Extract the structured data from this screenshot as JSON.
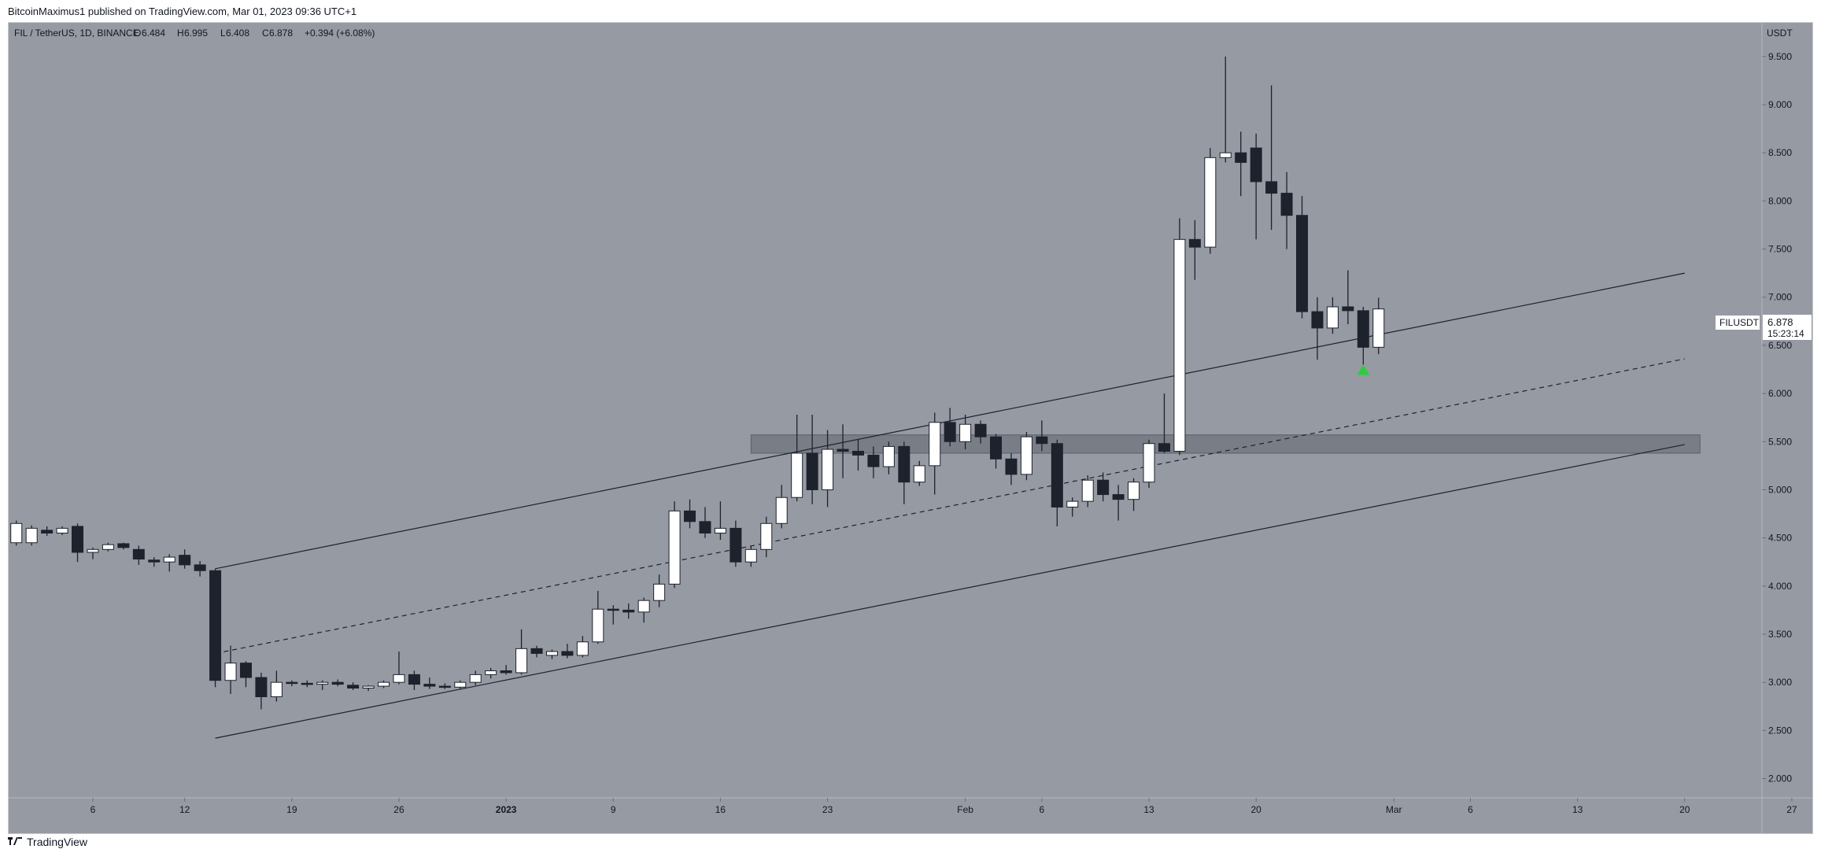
{
  "header": {
    "publish_line": "BitcoinMaximus1 published on TradingView.com, Mar 01, 2023 09:36 UTC+1"
  },
  "legend": {
    "symbol": "FIL / TetherUS, 1D, BINANCE",
    "open_label": "O",
    "open_value": "6.484",
    "high_label": "H",
    "high_value": "6.995",
    "low_label": "L",
    "low_value": "6.408",
    "close_label": "C",
    "close_value": "6.878",
    "change": "+0.394 (+6.08%)"
  },
  "price_scale": {
    "currency": "USDT",
    "ticks": [
      "9.500",
      "9.000",
      "8.500",
      "8.000",
      "7.500",
      "7.000",
      "6.500",
      "6.000",
      "5.500",
      "5.000",
      "4.500",
      "4.000",
      "3.500",
      "3.000",
      "2.500",
      "2.000"
    ]
  },
  "price_tag": {
    "symbol": "FILUSDT",
    "price": "6.878",
    "countdown": "15:23:14"
  },
  "time_axis": {
    "labels": [
      "6",
      "12",
      "19",
      "26",
      "2023",
      "9",
      "16",
      "23",
      "Feb",
      "6",
      "13",
      "20",
      "Mar",
      "6",
      "13",
      "20",
      "27"
    ]
  },
  "footer": {
    "brand": "TradingView"
  },
  "colors": {
    "chart_bg": "#969aa3",
    "bull_body": "#ffffff",
    "bear_body": "#1e222d",
    "wick": "#1e222d",
    "channel_line": "#1e222d",
    "zone": "#6f737c",
    "signal_arrow": "#2ecc40"
  },
  "chart_data": {
    "type": "candlestick",
    "title": "FIL / TetherUS, 1D, BINANCE",
    "ylabel": "USDT",
    "ylim": [
      1.8,
      9.85
    ],
    "y_ticks": [
      2.0,
      2.5,
      3.0,
      3.5,
      4.0,
      4.5,
      5.0,
      5.5,
      6.0,
      6.5,
      7.0,
      7.5,
      8.0,
      8.5,
      9.0,
      9.5
    ],
    "x_range": [
      "2022-12-01",
      "2023-03-31"
    ],
    "x_ticks": [
      {
        "date": "2022-12-06",
        "label": "6"
      },
      {
        "date": "2022-12-12",
        "label": "12"
      },
      {
        "date": "2022-12-19",
        "label": "19"
      },
      {
        "date": "2022-12-26",
        "label": "26"
      },
      {
        "date": "2023-01-02",
        "label": "2023"
      },
      {
        "date": "2023-01-09",
        "label": "9"
      },
      {
        "date": "2023-01-16",
        "label": "16"
      },
      {
        "date": "2023-01-23",
        "label": "23"
      },
      {
        "date": "2023-02-01",
        "label": "Feb"
      },
      {
        "date": "2023-02-06",
        "label": "6"
      },
      {
        "date": "2023-02-13",
        "label": "13"
      },
      {
        "date": "2023-02-20",
        "label": "20"
      },
      {
        "date": "2023-03-01",
        "label": "Mar"
      },
      {
        "date": "2023-03-06",
        "label": "6"
      },
      {
        "date": "2023-03-13",
        "label": "13"
      },
      {
        "date": "2023-03-20",
        "label": "20"
      },
      {
        "date": "2023-03-27",
        "label": "27"
      }
    ],
    "candles": [
      {
        "date": "2022-12-01",
        "o": 4.45,
        "h": 4.68,
        "l": 4.42,
        "c": 4.65
      },
      {
        "date": "2022-12-02",
        "o": 4.45,
        "h": 4.63,
        "l": 4.42,
        "c": 4.6
      },
      {
        "date": "2022-12-03",
        "o": 4.58,
        "h": 4.62,
        "l": 4.52,
        "c": 4.55
      },
      {
        "date": "2022-12-04",
        "o": 4.55,
        "h": 4.62,
        "l": 4.53,
        "c": 4.6
      },
      {
        "date": "2022-12-05",
        "o": 4.62,
        "h": 4.65,
        "l": 4.25,
        "c": 4.35
      },
      {
        "date": "2022-12-06",
        "o": 4.35,
        "h": 4.4,
        "l": 4.28,
        "c": 4.38
      },
      {
        "date": "2022-12-07",
        "o": 4.38,
        "h": 4.45,
        "l": 4.36,
        "c": 4.43
      },
      {
        "date": "2022-12-08",
        "o": 4.44,
        "h": 4.45,
        "l": 4.38,
        "c": 4.4
      },
      {
        "date": "2022-12-09",
        "o": 4.38,
        "h": 4.42,
        "l": 4.22,
        "c": 4.28
      },
      {
        "date": "2022-12-10",
        "o": 4.27,
        "h": 4.3,
        "l": 4.2,
        "c": 4.25
      },
      {
        "date": "2022-12-11",
        "o": 4.25,
        "h": 4.33,
        "l": 4.15,
        "c": 4.3
      },
      {
        "date": "2022-12-12",
        "o": 4.32,
        "h": 4.38,
        "l": 4.18,
        "c": 4.22
      },
      {
        "date": "2022-12-13",
        "o": 4.22,
        "h": 4.26,
        "l": 4.1,
        "c": 4.16
      },
      {
        "date": "2022-12-14",
        "o": 4.16,
        "h": 4.18,
        "l": 2.95,
        "c": 3.02
      },
      {
        "date": "2022-12-15",
        "o": 3.02,
        "h": 3.38,
        "l": 2.88,
        "c": 3.2
      },
      {
        "date": "2022-12-16",
        "o": 3.2,
        "h": 3.22,
        "l": 2.95,
        "c": 3.05
      },
      {
        "date": "2022-12-17",
        "o": 3.05,
        "h": 3.1,
        "l": 2.72,
        "c": 2.85
      },
      {
        "date": "2022-12-18",
        "o": 2.85,
        "h": 3.12,
        "l": 2.8,
        "c": 3.0
      },
      {
        "date": "2022-12-19",
        "o": 3.0,
        "h": 3.02,
        "l": 2.96,
        "c": 2.99
      },
      {
        "date": "2022-12-20",
        "o": 2.99,
        "h": 3.02,
        "l": 2.95,
        "c": 2.98
      },
      {
        "date": "2022-12-21",
        "o": 2.98,
        "h": 3.02,
        "l": 2.92,
        "c": 3.0
      },
      {
        "date": "2022-12-22",
        "o": 3.0,
        "h": 3.03,
        "l": 2.96,
        "c": 2.98
      },
      {
        "date": "2022-12-23",
        "o": 2.97,
        "h": 3.0,
        "l": 2.92,
        "c": 2.94
      },
      {
        "date": "2022-12-24",
        "o": 2.94,
        "h": 2.97,
        "l": 2.91,
        "c": 2.96
      },
      {
        "date": "2022-12-25",
        "o": 2.96,
        "h": 3.02,
        "l": 2.94,
        "c": 3.0
      },
      {
        "date": "2022-12-26",
        "o": 3.0,
        "h": 3.32,
        "l": 2.98,
        "c": 3.08
      },
      {
        "date": "2022-12-27",
        "o": 3.08,
        "h": 3.12,
        "l": 2.92,
        "c": 2.98
      },
      {
        "date": "2022-12-28",
        "o": 2.98,
        "h": 3.05,
        "l": 2.93,
        "c": 2.96
      },
      {
        "date": "2022-12-29",
        "o": 2.96,
        "h": 2.99,
        "l": 2.93,
        "c": 2.95
      },
      {
        "date": "2022-12-30",
        "o": 2.95,
        "h": 3.02,
        "l": 2.93,
        "c": 3.0
      },
      {
        "date": "2022-12-31",
        "o": 3.0,
        "h": 3.12,
        "l": 2.97,
        "c": 3.08
      },
      {
        "date": "2023-01-01",
        "o": 3.08,
        "h": 3.15,
        "l": 3.04,
        "c": 3.12
      },
      {
        "date": "2023-01-02",
        "o": 3.12,
        "h": 3.18,
        "l": 3.08,
        "c": 3.1
      },
      {
        "date": "2023-01-03",
        "o": 3.1,
        "h": 3.55,
        "l": 3.08,
        "c": 3.35
      },
      {
        "date": "2023-01-04",
        "o": 3.35,
        "h": 3.38,
        "l": 3.26,
        "c": 3.3
      },
      {
        "date": "2023-01-05",
        "o": 3.28,
        "h": 3.34,
        "l": 3.24,
        "c": 3.32
      },
      {
        "date": "2023-01-06",
        "o": 3.32,
        "h": 3.4,
        "l": 3.25,
        "c": 3.28
      },
      {
        "date": "2023-01-07",
        "o": 3.28,
        "h": 3.48,
        "l": 3.26,
        "c": 3.42
      },
      {
        "date": "2023-01-08",
        "o": 3.42,
        "h": 3.95,
        "l": 3.4,
        "c": 3.76
      },
      {
        "date": "2023-01-09",
        "o": 3.76,
        "h": 3.8,
        "l": 3.6,
        "c": 3.75
      },
      {
        "date": "2023-01-10",
        "o": 3.75,
        "h": 3.82,
        "l": 3.66,
        "c": 3.73
      },
      {
        "date": "2023-01-11",
        "o": 3.73,
        "h": 3.88,
        "l": 3.62,
        "c": 3.85
      },
      {
        "date": "2023-01-12",
        "o": 3.85,
        "h": 4.12,
        "l": 3.78,
        "c": 4.02
      },
      {
        "date": "2023-01-13",
        "o": 4.02,
        "h": 4.88,
        "l": 3.98,
        "c": 4.78
      },
      {
        "date": "2023-01-14",
        "o": 4.78,
        "h": 4.9,
        "l": 4.6,
        "c": 4.67
      },
      {
        "date": "2023-01-15",
        "o": 4.67,
        "h": 4.82,
        "l": 4.5,
        "c": 4.55
      },
      {
        "date": "2023-01-16",
        "o": 4.55,
        "h": 4.88,
        "l": 4.48,
        "c": 4.6
      },
      {
        "date": "2023-01-17",
        "o": 4.6,
        "h": 4.68,
        "l": 4.2,
        "c": 4.25
      },
      {
        "date": "2023-01-18",
        "o": 4.25,
        "h": 4.42,
        "l": 4.2,
        "c": 4.38
      },
      {
        "date": "2023-01-19",
        "o": 4.38,
        "h": 4.72,
        "l": 4.3,
        "c": 4.65
      },
      {
        "date": "2023-01-20",
        "o": 4.65,
        "h": 5.05,
        "l": 4.6,
        "c": 4.92
      },
      {
        "date": "2023-01-21",
        "o": 4.92,
        "h": 5.78,
        "l": 4.88,
        "c": 5.38
      },
      {
        "date": "2023-01-22",
        "o": 5.38,
        "h": 5.78,
        "l": 4.85,
        "c": 5.0
      },
      {
        "date": "2023-01-23",
        "o": 5.0,
        "h": 5.62,
        "l": 4.82,
        "c": 5.42
      },
      {
        "date": "2023-01-24",
        "o": 5.42,
        "h": 5.68,
        "l": 5.12,
        "c": 5.4
      },
      {
        "date": "2023-01-25",
        "o": 5.4,
        "h": 5.52,
        "l": 5.2,
        "c": 5.36
      },
      {
        "date": "2023-01-26",
        "o": 5.36,
        "h": 5.45,
        "l": 5.12,
        "c": 5.24
      },
      {
        "date": "2023-01-27",
        "o": 5.24,
        "h": 5.5,
        "l": 5.16,
        "c": 5.45
      },
      {
        "date": "2023-01-28",
        "o": 5.45,
        "h": 5.5,
        "l": 4.85,
        "c": 5.08
      },
      {
        "date": "2023-01-29",
        "o": 5.08,
        "h": 5.3,
        "l": 5.04,
        "c": 5.25
      },
      {
        "date": "2023-01-30",
        "o": 5.25,
        "h": 5.8,
        "l": 4.95,
        "c": 5.7
      },
      {
        "date": "2023-01-31",
        "o": 5.7,
        "h": 5.85,
        "l": 5.45,
        "c": 5.5
      },
      {
        "date": "2023-02-01",
        "o": 5.5,
        "h": 5.78,
        "l": 5.42,
        "c": 5.68
      },
      {
        "date": "2023-02-02",
        "o": 5.68,
        "h": 5.72,
        "l": 5.48,
        "c": 5.55
      },
      {
        "date": "2023-02-03",
        "o": 5.55,
        "h": 5.58,
        "l": 5.22,
        "c": 5.32
      },
      {
        "date": "2023-02-04",
        "o": 5.32,
        "h": 5.38,
        "l": 5.05,
        "c": 5.16
      },
      {
        "date": "2023-02-05",
        "o": 5.16,
        "h": 5.6,
        "l": 5.1,
        "c": 5.55
      },
      {
        "date": "2023-02-06",
        "o": 5.55,
        "h": 5.72,
        "l": 5.4,
        "c": 5.48
      },
      {
        "date": "2023-02-07",
        "o": 5.48,
        "h": 5.52,
        "l": 4.62,
        "c": 4.82
      },
      {
        "date": "2023-02-08",
        "o": 4.82,
        "h": 4.92,
        "l": 4.72,
        "c": 4.88
      },
      {
        "date": "2023-02-09",
        "o": 4.88,
        "h": 5.15,
        "l": 4.82,
        "c": 5.1
      },
      {
        "date": "2023-02-10",
        "o": 5.1,
        "h": 5.18,
        "l": 4.88,
        "c": 4.95
      },
      {
        "date": "2023-02-11",
        "o": 4.95,
        "h": 5.05,
        "l": 4.68,
        "c": 4.9
      },
      {
        "date": "2023-02-12",
        "o": 4.9,
        "h": 5.12,
        "l": 4.78,
        "c": 5.08
      },
      {
        "date": "2023-02-13",
        "o": 5.08,
        "h": 5.52,
        "l": 5.02,
        "c": 5.48
      },
      {
        "date": "2023-02-14",
        "o": 5.48,
        "h": 6.0,
        "l": 5.38,
        "c": 5.4
      },
      {
        "date": "2023-02-15",
        "o": 5.4,
        "h": 7.82,
        "l": 5.36,
        "c": 7.6
      },
      {
        "date": "2023-02-16",
        "o": 7.6,
        "h": 7.8,
        "l": 7.18,
        "c": 7.52
      },
      {
        "date": "2023-02-17",
        "o": 7.52,
        "h": 8.55,
        "l": 7.45,
        "c": 8.45
      },
      {
        "date": "2023-02-18",
        "o": 8.45,
        "h": 9.5,
        "l": 8.4,
        "c": 8.5
      },
      {
        "date": "2023-02-19",
        "o": 8.5,
        "h": 8.72,
        "l": 8.05,
        "c": 8.4
      },
      {
        "date": "2023-02-20",
        "o": 8.55,
        "h": 8.7,
        "l": 7.6,
        "c": 8.2
      },
      {
        "date": "2023-02-21",
        "o": 8.2,
        "h": 9.2,
        "l": 7.7,
        "c": 8.08
      },
      {
        "date": "2023-02-22",
        "o": 8.08,
        "h": 8.3,
        "l": 7.5,
        "c": 7.85
      },
      {
        "date": "2023-02-23",
        "o": 7.85,
        "h": 8.05,
        "l": 6.78,
        "c": 6.85
      },
      {
        "date": "2023-02-24",
        "o": 6.85,
        "h": 7.0,
        "l": 6.35,
        "c": 6.68
      },
      {
        "date": "2023-02-25",
        "o": 6.68,
        "h": 7.0,
        "l": 6.62,
        "c": 6.9
      },
      {
        "date": "2023-02-26",
        "o": 6.9,
        "h": 7.28,
        "l": 6.72,
        "c": 6.86
      },
      {
        "date": "2023-02-27",
        "o": 6.86,
        "h": 6.9,
        "l": 6.3,
        "c": 6.48
      },
      {
        "date": "2023-02-28",
        "o": 6.48,
        "h": 6.995,
        "l": 6.408,
        "c": 6.878
      }
    ],
    "drawings": {
      "channel_upper": {
        "from": {
          "date": "2022-12-14",
          "price": 4.18
        },
        "to": {
          "date": "2023-03-20",
          "price": 7.25
        }
      },
      "channel_mid_dashed": {
        "from": {
          "date": "2022-12-14",
          "price": 3.3
        },
        "to": {
          "date": "2023-03-20",
          "price": 6.36
        }
      },
      "channel_lower": {
        "from": {
          "date": "2022-12-14",
          "price": 2.42
        },
        "to": {
          "date": "2023-03-20",
          "price": 5.47
        }
      },
      "support_zone": {
        "from_date": "2023-01-18",
        "to_date": "2023-03-21",
        "low": 5.38,
        "high": 5.57
      },
      "signal_arrow": {
        "date": "2023-02-27",
        "price": 6.25,
        "direction": "up"
      }
    }
  }
}
